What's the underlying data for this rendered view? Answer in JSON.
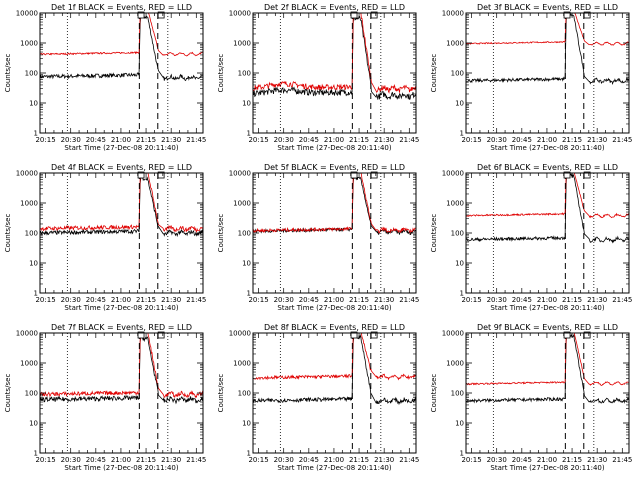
{
  "chart_data": {
    "type": "line",
    "xlabel": "Start Time (27-Dec-08 20:11:40)",
    "ylabel": "Counts/sec",
    "x_tick_labels": [
      "20:15",
      "20:30",
      "20:45",
      "21:00",
      "21:15",
      "21:30",
      "21:45"
    ],
    "x_tick_minutes": [
      15,
      30,
      45,
      60,
      75,
      90,
      105
    ],
    "xlim_minutes": [
      11.67,
      109
    ],
    "y_tick_labels": [
      "1",
      "10",
      "100",
      "1000",
      "10000"
    ],
    "y_tick_values": [
      1,
      10,
      100,
      1000,
      10000
    ],
    "ylim": [
      1,
      10000
    ],
    "ylog": true,
    "dotted_vlines_minutes": [
      28,
      88
    ],
    "dashed_vlines_minutes": [
      71,
      82
    ],
    "box_markers_minutes": [
      72,
      84
    ],
    "panels": [
      {
        "title": "Det  1f BLACK = Events, RED = LLD",
        "x_labels_variant": "full",
        "series": [
          {
            "name": "Events",
            "color": "#000000",
            "base": 75,
            "post": 70,
            "peak": 8000,
            "noise": 0.05
          },
          {
            "name": "LLD",
            "color": "#e00000",
            "base": 420,
            "post": 430,
            "peak": 14000,
            "noise": 0.02
          }
        ]
      },
      {
        "title": "Det  2f BLACK = Events, RED = LLD",
        "x_labels_variant": "full",
        "series": [
          {
            "name": "Events",
            "color": "#000000",
            "base": 20,
            "post": 18,
            "peak": 7000,
            "noise": 0.08,
            "hump": 1.3
          },
          {
            "name": "LLD",
            "color": "#e00000",
            "base": 30,
            "post": 30,
            "peak": 12000,
            "noise": 0.07,
            "hump": 1.4
          }
        ]
      },
      {
        "title": "Det  3f BLACK = Events, RED = LLD",
        "x_labels_variant": "partial",
        "series": [
          {
            "name": "Events",
            "color": "#000000",
            "base": 55,
            "post": 55,
            "peak": 9000,
            "noise": 0.04
          },
          {
            "name": "LLD",
            "color": "#e00000",
            "base": 950,
            "post": 950,
            "peak": 14000,
            "noise": 0.015
          }
        ]
      },
      {
        "title": "Det  4f BLACK = Events, RED = LLD",
        "x_labels_variant": "full",
        "series": [
          {
            "name": "Events",
            "color": "#000000",
            "base": 100,
            "post": 100,
            "peak": 7000,
            "noise": 0.05
          },
          {
            "name": "LLD",
            "color": "#e00000",
            "base": 140,
            "post": 140,
            "peak": 12000,
            "noise": 0.05
          }
        ]
      },
      {
        "title": "Det  5f BLACK = Events, RED = LLD",
        "x_labels_variant": "full",
        "series": [
          {
            "name": "Events",
            "color": "#000000",
            "base": 115,
            "post": 110,
            "peak": 7000,
            "noise": 0.04
          },
          {
            "name": "LLD",
            "color": "#e00000",
            "base": 120,
            "post": 125,
            "peak": 12000,
            "noise": 0.04
          }
        ]
      },
      {
        "title": "Det  6f BLACK = Events, RED = LLD",
        "x_labels_variant": "partial",
        "series": [
          {
            "name": "Events",
            "color": "#000000",
            "base": 60,
            "post": 60,
            "peak": 9000,
            "noise": 0.04
          },
          {
            "name": "LLD",
            "color": "#e00000",
            "base": 380,
            "post": 380,
            "peak": 14000,
            "noise": 0.02
          }
        ]
      },
      {
        "title": "Det  7f BLACK = Events, RED = LLD",
        "x_labels_variant": "full",
        "series": [
          {
            "name": "Events",
            "color": "#000000",
            "base": 60,
            "post": 60,
            "peak": 7000,
            "noise": 0.06
          },
          {
            "name": "LLD",
            "color": "#e00000",
            "base": 90,
            "post": 90,
            "peak": 12000,
            "noise": 0.05
          }
        ]
      },
      {
        "title": "Det  8f BLACK = Events, RED = LLD",
        "x_labels_variant": "full",
        "series": [
          {
            "name": "Events",
            "color": "#000000",
            "base": 55,
            "post": 55,
            "peak": 8000,
            "noise": 0.05
          },
          {
            "name": "LLD",
            "color": "#e00000",
            "base": 320,
            "post": 350,
            "peak": 13000,
            "noise": 0.04
          }
        ]
      },
      {
        "title": "Det  9f BLACK = Events, RED = LLD",
        "x_labels_variant": "partial",
        "series": [
          {
            "name": "Events",
            "color": "#000000",
            "base": 55,
            "post": 55,
            "peak": 9000,
            "noise": 0.04
          },
          {
            "name": "LLD",
            "color": "#e00000",
            "base": 200,
            "post": 210,
            "peak": 14000,
            "noise": 0.02
          }
        ]
      }
    ]
  }
}
